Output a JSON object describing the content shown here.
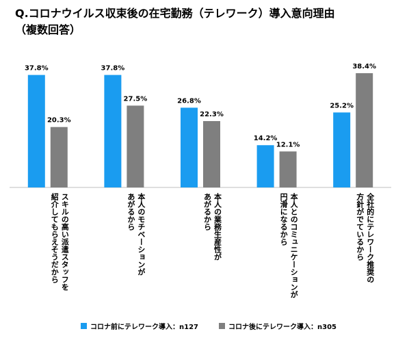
{
  "title": {
    "line1": "Q.コロナウイルス収束後の在宅勤務（テレワーク）導入意向理由",
    "line2": "（複数回答）"
  },
  "colors": {
    "before": "#1a9cf0",
    "after": "#7f7f7f",
    "axis": "#bfbfbf"
  },
  "chart_data": {
    "type": "bar",
    "title": "Q.コロナウイルス収束後の在宅勤務（テレワーク）導入意向理由（複数回答）",
    "ylim": [
      0,
      40
    ],
    "grid": false,
    "legend": "bottom",
    "categories": [
      [
        "スキルの高い派遣スタッフを",
        "紹介してもらえそうだから"
      ],
      [
        "本人のモチベーションが",
        "あがるから"
      ],
      [
        "本人の業務生産性が",
        "あがるから"
      ],
      [
        "本人とのコミュニケーションが",
        "円滑になるから"
      ],
      [
        "全社的にテレワーク推奨の",
        "方針がでているから"
      ]
    ],
    "series": [
      {
        "name": "コロナ前にテレワーク導入：n127",
        "values": [
          37.8,
          37.8,
          26.8,
          14.2,
          25.2
        ],
        "labels": [
          "37.8%",
          "37.8%",
          "26.8%",
          "14.2%",
          "25.2%"
        ]
      },
      {
        "name": "コロナ後にテレワーク導入：n305",
        "values": [
          20.3,
          27.5,
          22.3,
          12.1,
          38.4
        ],
        "labels": [
          "20.3%",
          "27.5%",
          "22.3%",
          "12.1%",
          "38.4%"
        ]
      }
    ]
  }
}
